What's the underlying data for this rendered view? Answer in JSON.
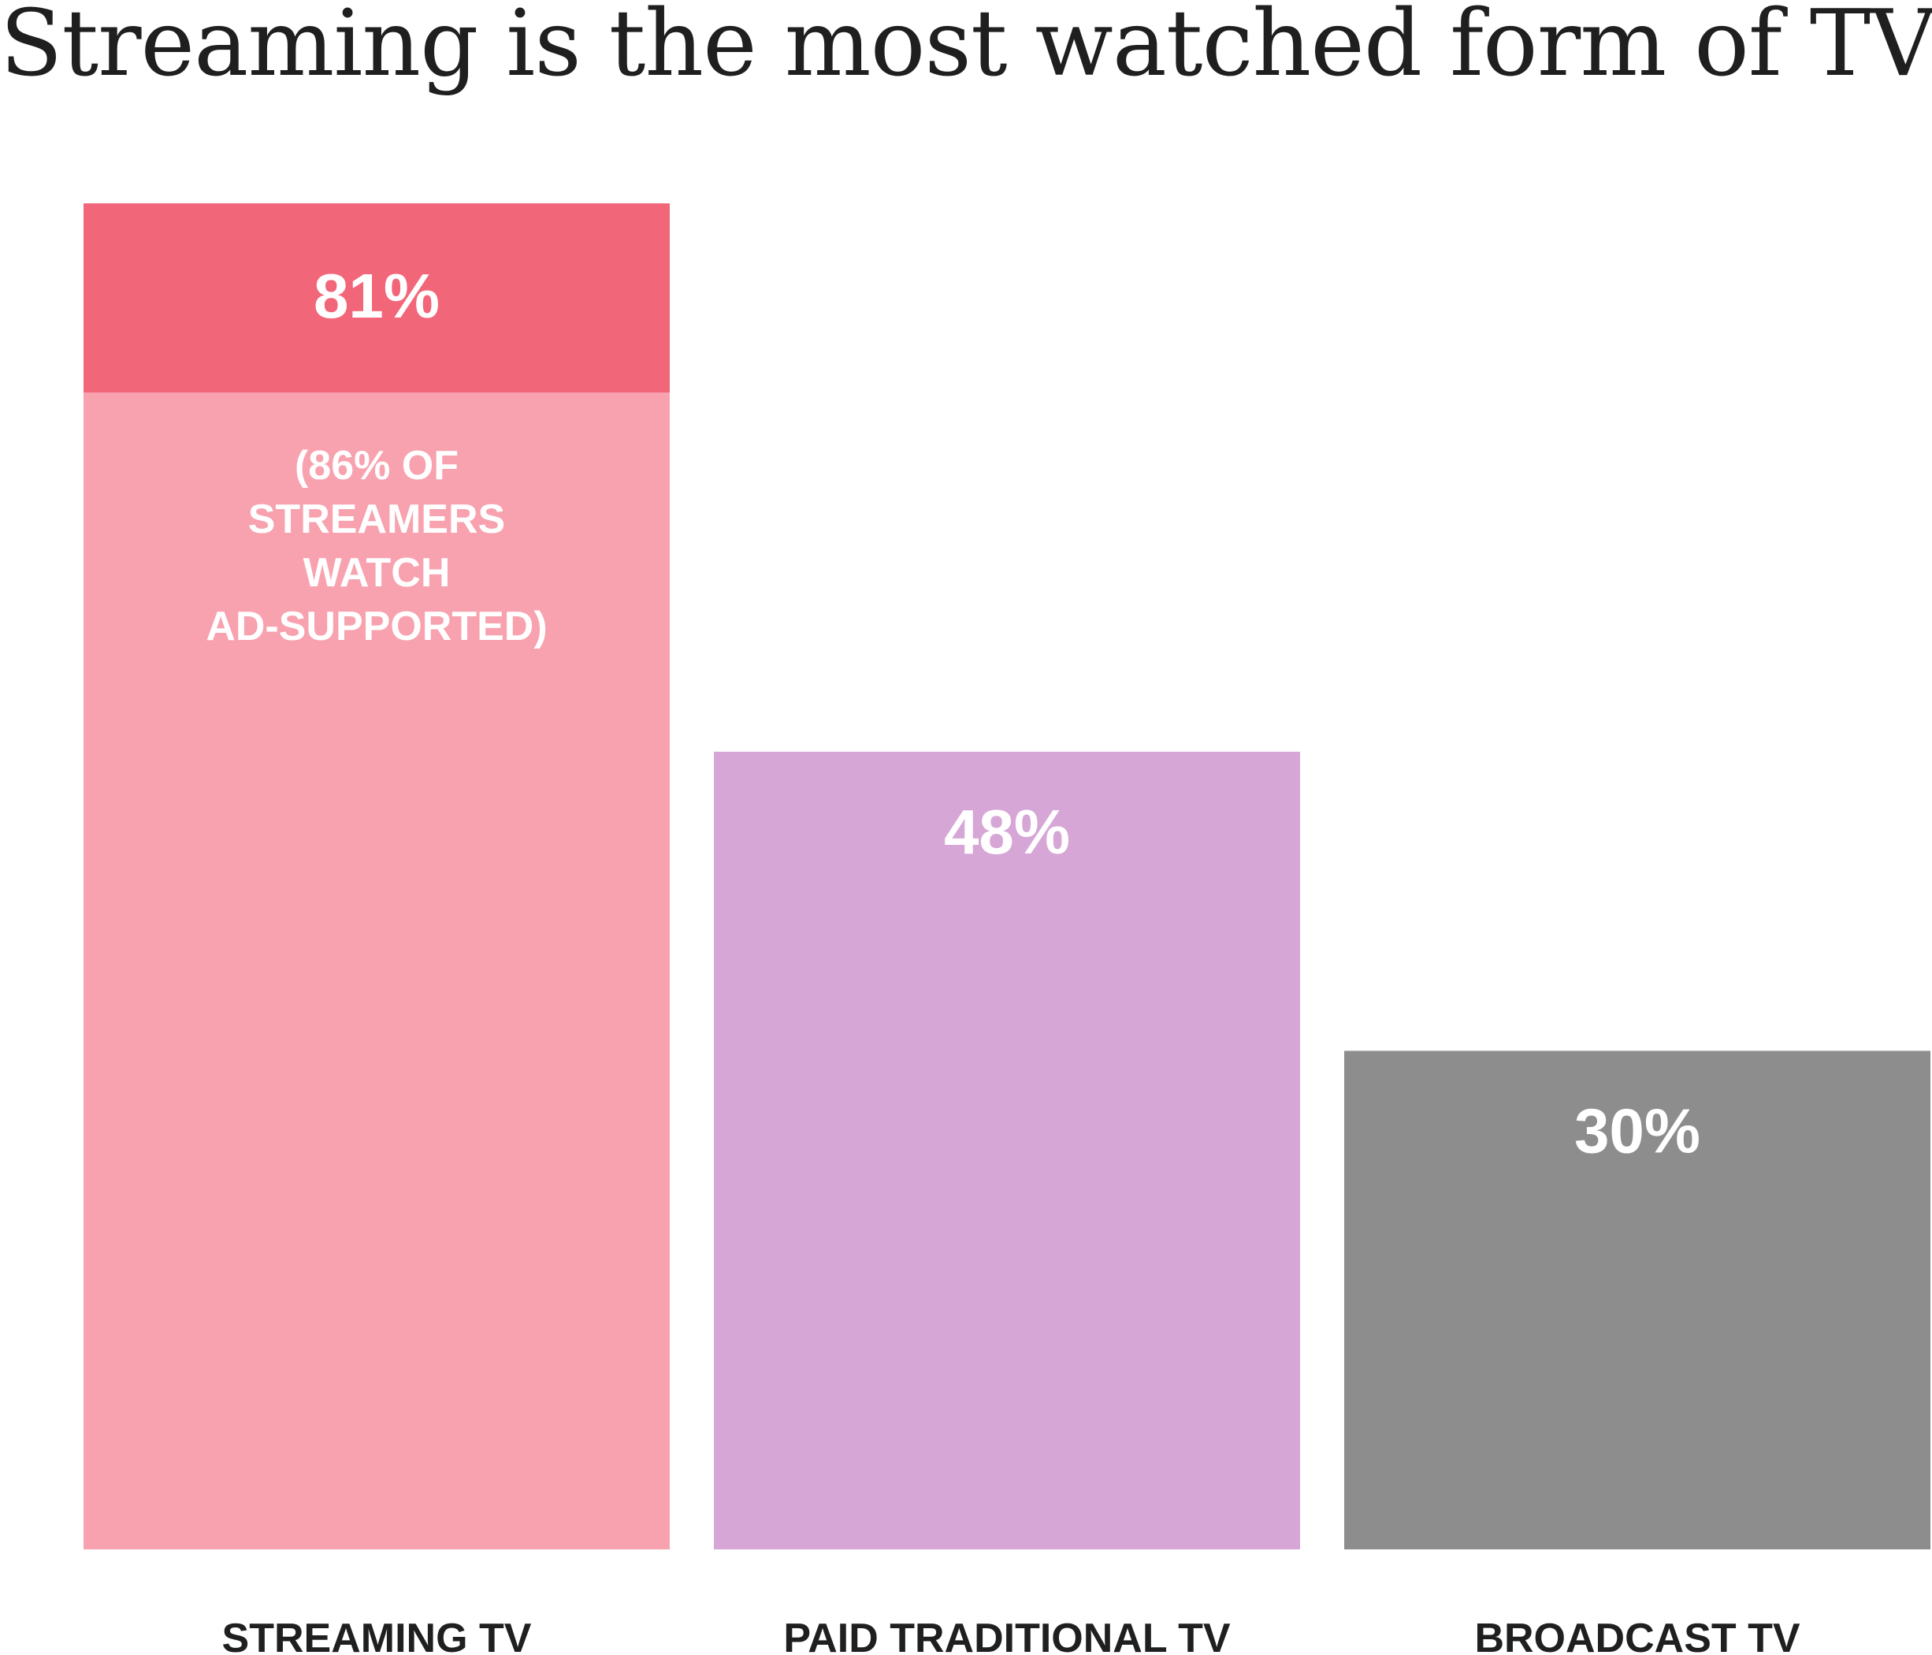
{
  "chart_data": {
    "type": "bar",
    "title": "Streaming is the most watched form of TV",
    "categories": [
      "STREAMING TV",
      "PAID TRADITIONAL TV",
      "BROADCAST TV"
    ],
    "values": [
      81,
      48,
      30
    ],
    "value_labels": [
      "81%",
      "48%",
      "30%"
    ],
    "unit": "%",
    "ylim": [
      0,
      81
    ],
    "grid": false,
    "legend": "none",
    "annotations": [
      {
        "category": "STREAMING TV",
        "value": 86,
        "lines": [
          "(86% OF",
          "STREAMERS",
          "WATCH",
          "AD-SUPPORTED)"
        ]
      }
    ],
    "colors": {
      "streaming_highlight": "#f26679",
      "streaming": "#f7a2ae",
      "paid_traditional": "#d6a6d7",
      "broadcast": "#8d8d8d",
      "label_on_bar": "#ffffff",
      "axis_text": "#1f1f1f"
    }
  }
}
